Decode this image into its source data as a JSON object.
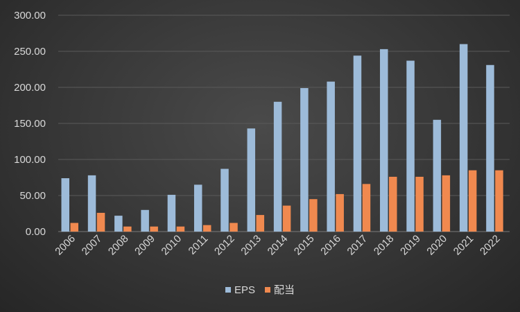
{
  "chart_data": {
    "type": "bar",
    "title": "",
    "xlabel": "",
    "ylabel": "",
    "categories": [
      "2006",
      "2007",
      "2008",
      "2009",
      "2010",
      "2011",
      "2012",
      "2013",
      "2014",
      "2015",
      "2016",
      "2017",
      "2018",
      "2019",
      "2020",
      "2021",
      "2022"
    ],
    "series": [
      {
        "name": "EPS",
        "color": "#9dbbd9",
        "values": [
          74,
          78,
          22,
          30,
          51,
          65,
          87,
          143,
          180,
          199,
          208,
          244,
          253,
          237,
          155,
          260,
          231
        ]
      },
      {
        "name": "配当",
        "color": "#f0894f",
        "values": [
          12,
          26,
          7,
          7,
          7,
          9,
          12,
          23,
          36,
          45,
          52,
          66,
          76,
          76,
          78,
          85,
          85
        ]
      }
    ],
    "ylim": [
      0,
      300
    ],
    "yticks": [
      "0.00",
      "50.00",
      "100.00",
      "150.00",
      "200.00",
      "250.00",
      "300.00"
    ],
    "grid": true,
    "legend": "bottom"
  }
}
